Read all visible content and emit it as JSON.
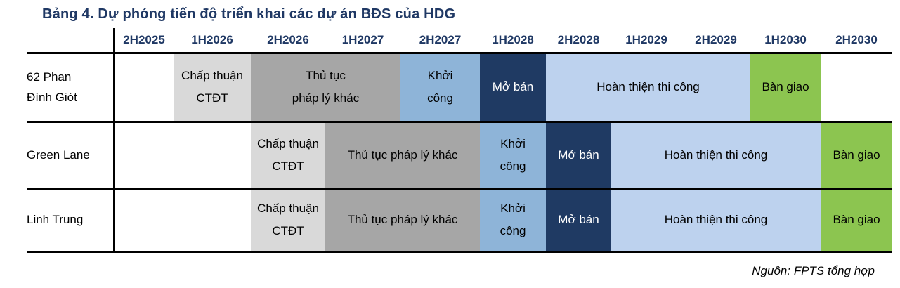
{
  "title": "Bảng 4. Dự phóng tiến độ triển khai các dự án BĐS của HDG",
  "source_note": "Nguồn: FPTS tổng hợp",
  "colors": {
    "title_navy": "#1F3864",
    "header_navy": "#1F3864",
    "grid_line": "#000000",
    "approval_gray": "#D9D9D9",
    "legal_gray": "#A6A6A6",
    "start_blue": "#8EB4D8",
    "sales_navy": "#1F3A63",
    "finishing_blue": "#BDD2EE",
    "handover_green": "#8CC550"
  },
  "chart_data": {
    "type": "table",
    "subtype": "gantt-timeline",
    "title": "Bảng 4. Dự phóng tiến độ triển khai các dự án BĐS của HDG",
    "columns": [
      "2H2025",
      "1H2026",
      "2H2026",
      "1H2027",
      "2H2027",
      "1H2028",
      "2H2028",
      "1H2029",
      "2H2029",
      "1H2030",
      "2H2030"
    ],
    "phase_colors": {
      "Chấp thuận CTĐT": "#D9D9D9",
      "Thủ tục pháp lý khác": "#A6A6A6",
      "Khởi công": "#8EB4D8",
      "Mở bán": "#1F3A63",
      "Hoàn thiện thi công": "#BDD2EE",
      "Bàn giao": "#8CC550"
    },
    "rows": [
      {
        "label": "62 Phan Đình Giót",
        "phases": [
          {
            "name": "Chấp thuận CTĐT",
            "start": "1H2026",
            "end": "1H2026",
            "lines": [
              "Chấp thuận",
              "CTĐT"
            ],
            "bg": "#D9D9D9",
            "fg": "#000000"
          },
          {
            "name": "Thủ tục pháp lý khác",
            "start": "2H2026",
            "end": "1H2027",
            "lines": [
              "Thủ tục",
              "pháp lý khác"
            ],
            "bg": "#A6A6A6",
            "fg": "#000000"
          },
          {
            "name": "Khởi công",
            "start": "2H2027",
            "end": "2H2027",
            "lines": [
              "Khởi",
              "công"
            ],
            "bg": "#8EB4D8",
            "fg": "#000000"
          },
          {
            "name": "Mở bán",
            "start": "1H2028",
            "end": "1H2028",
            "lines": [
              "Mở bán"
            ],
            "bg": "#1F3A63",
            "fg": "#FFFFFF"
          },
          {
            "name": "Hoàn thiện thi công",
            "start": "2H2028",
            "end": "2H2029",
            "lines": [
              "Hoàn thiện thi công"
            ],
            "bg": "#BDD2EE",
            "fg": "#000000"
          },
          {
            "name": "Bàn giao",
            "start": "1H2030",
            "end": "1H2030",
            "lines": [
              "Bàn giao"
            ],
            "bg": "#8CC550",
            "fg": "#000000"
          }
        ]
      },
      {
        "label": "Green Lane",
        "phases": [
          {
            "name": "Chấp thuận CTĐT",
            "start": "2H2026",
            "end": "2H2026",
            "lines": [
              "Chấp thuận",
              "CTĐT"
            ],
            "bg": "#D9D9D9",
            "fg": "#000000"
          },
          {
            "name": "Thủ tục pháp lý khác",
            "start": "1H2027",
            "end": "2H2027",
            "lines": [
              "Thủ tục pháp lý khác"
            ],
            "bg": "#A6A6A6",
            "fg": "#000000"
          },
          {
            "name": "Khởi công",
            "start": "1H2028",
            "end": "1H2028",
            "lines": [
              "Khởi",
              "công"
            ],
            "bg": "#8EB4D8",
            "fg": "#000000"
          },
          {
            "name": "Mở bán",
            "start": "2H2028",
            "end": "2H2028",
            "lines": [
              "Mở bán"
            ],
            "bg": "#1F3A63",
            "fg": "#FFFFFF"
          },
          {
            "name": "Hoàn thiện thi công",
            "start": "1H2029",
            "end": "1H2030",
            "lines": [
              "Hoàn thiện thi công"
            ],
            "bg": "#BDD2EE",
            "fg": "#000000"
          },
          {
            "name": "Bàn giao",
            "start": "2H2030",
            "end": "2H2030",
            "lines": [
              "Bàn giao"
            ],
            "bg": "#8CC550",
            "fg": "#000000"
          }
        ]
      },
      {
        "label": "Linh Trung",
        "phases": [
          {
            "name": "Chấp thuận CTĐT",
            "start": "2H2026",
            "end": "2H2026",
            "lines": [
              "Chấp thuận",
              "CTĐT"
            ],
            "bg": "#D9D9D9",
            "fg": "#000000"
          },
          {
            "name": "Thủ tục pháp lý khác",
            "start": "1H2027",
            "end": "2H2027",
            "lines": [
              "Thủ tục pháp lý khác"
            ],
            "bg": "#A6A6A6",
            "fg": "#000000"
          },
          {
            "name": "Khởi công",
            "start": "1H2028",
            "end": "1H2028",
            "lines": [
              "Khởi",
              "công"
            ],
            "bg": "#8EB4D8",
            "fg": "#000000"
          },
          {
            "name": "Mở bán",
            "start": "2H2028",
            "end": "2H2028",
            "lines": [
              "Mở bán"
            ],
            "bg": "#1F3A63",
            "fg": "#FFFFFF"
          },
          {
            "name": "Hoàn thiện thi công",
            "start": "1H2029",
            "end": "1H2030",
            "lines": [
              "Hoàn thiện thi công"
            ],
            "bg": "#BDD2EE",
            "fg": "#000000"
          },
          {
            "name": "Bàn giao",
            "start": "2H2030",
            "end": "2H2030",
            "lines": [
              "Bàn giao"
            ],
            "bg": "#8CC550",
            "fg": "#000000"
          }
        ]
      }
    ]
  }
}
